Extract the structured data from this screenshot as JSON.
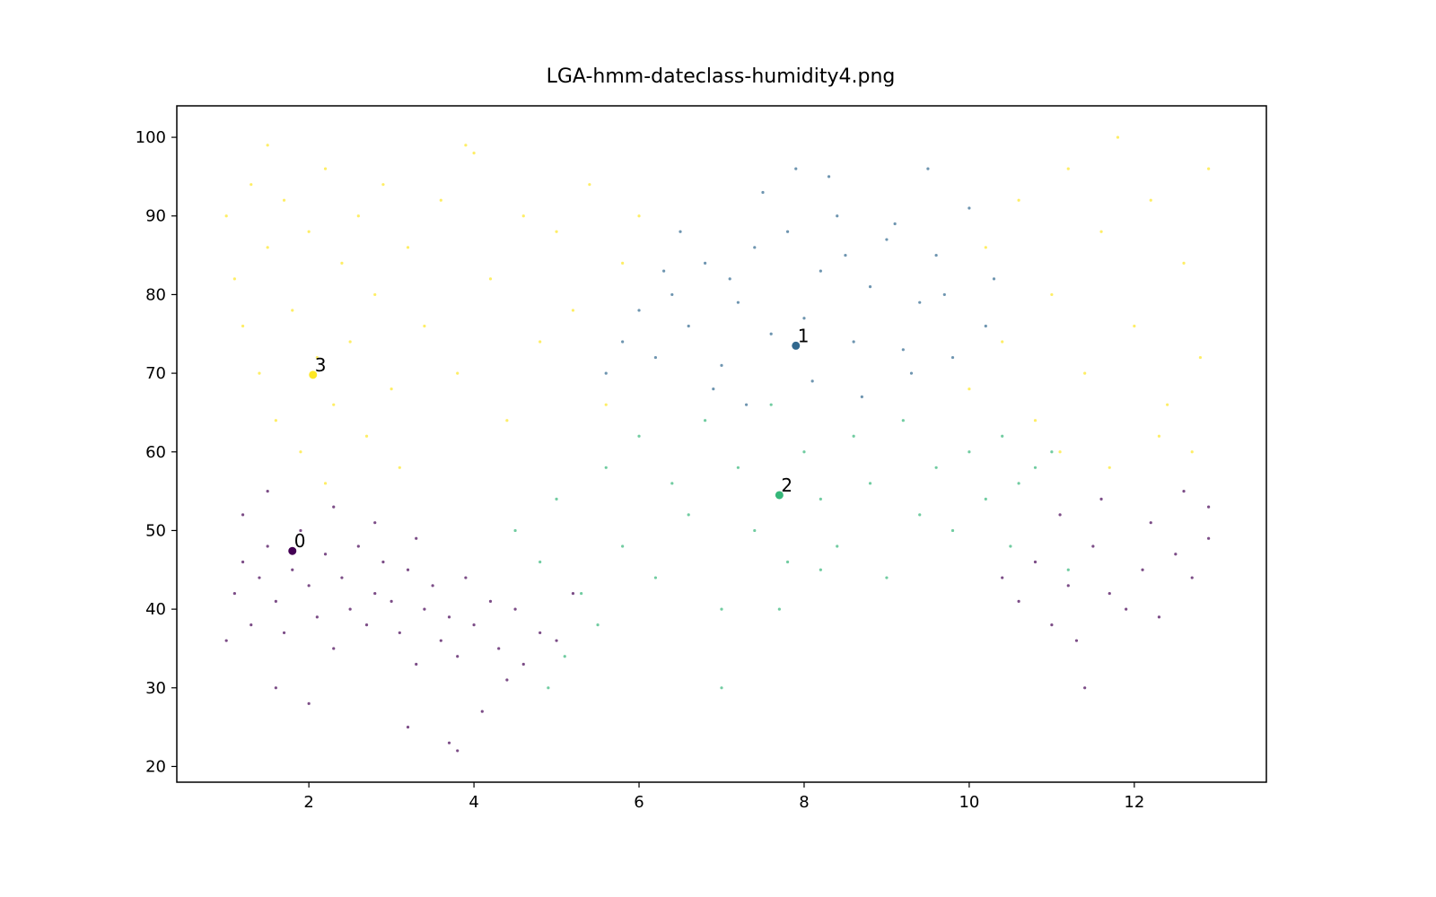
{
  "chart_data": {
    "type": "scatter",
    "title": "LGA-hmm-dateclass-humidity4.png",
    "xlabel": "",
    "ylabel": "",
    "xlim": [
      0.4,
      13.6
    ],
    "ylim": [
      18,
      104
    ],
    "x_ticks": [
      "2",
      "4",
      "6",
      "8",
      "10",
      "12"
    ],
    "y_ticks": [
      "20",
      "30",
      "40",
      "50",
      "60",
      "70",
      "80",
      "90",
      "100"
    ],
    "grid": false,
    "legend": "none",
    "colors": {
      "class_0": "#440154",
      "class_1": "#31688e",
      "class_2": "#35b779",
      "class_3": "#fde725"
    },
    "series": [
      {
        "label": "0",
        "center": {
          "x": 1.8,
          "y": 47.4
        },
        "points": [
          [
            1.0,
            36
          ],
          [
            1.1,
            42
          ],
          [
            1.2,
            46
          ],
          [
            1.3,
            38
          ],
          [
            1.4,
            44
          ],
          [
            1.5,
            48
          ],
          [
            1.6,
            41
          ],
          [
            1.7,
            37
          ],
          [
            1.8,
            45
          ],
          [
            1.9,
            50
          ],
          [
            2.0,
            43
          ],
          [
            2.1,
            39
          ],
          [
            2.2,
            47
          ],
          [
            2.3,
            35
          ],
          [
            2.4,
            44
          ],
          [
            2.5,
            40
          ],
          [
            2.6,
            48
          ],
          [
            2.7,
            38
          ],
          [
            2.8,
            42
          ],
          [
            2.9,
            46
          ],
          [
            3.0,
            41
          ],
          [
            3.1,
            37
          ],
          [
            3.2,
            45
          ],
          [
            3.3,
            33
          ],
          [
            3.4,
            40
          ],
          [
            3.5,
            43
          ],
          [
            3.6,
            36
          ],
          [
            3.7,
            39
          ],
          [
            3.8,
            34
          ],
          [
            3.9,
            44
          ],
          [
            4.0,
            38
          ],
          [
            4.1,
            27
          ],
          [
            4.2,
            41
          ],
          [
            4.3,
            35
          ],
          [
            4.4,
            31
          ],
          [
            4.5,
            40
          ],
          [
            4.6,
            33
          ],
          [
            4.8,
            37
          ],
          [
            5.0,
            36
          ],
          [
            5.2,
            42
          ],
          [
            1.2,
            52
          ],
          [
            1.5,
            55
          ],
          [
            2.3,
            53
          ],
          [
            2.8,
            51
          ],
          [
            3.3,
            49
          ],
          [
            1.6,
            30
          ],
          [
            2.0,
            28
          ],
          [
            3.2,
            25
          ],
          [
            3.7,
            23
          ],
          [
            3.8,
            22
          ],
          [
            10.4,
            44
          ],
          [
            10.6,
            41
          ],
          [
            10.8,
            46
          ],
          [
            11.0,
            38
          ],
          [
            11.2,
            43
          ],
          [
            11.3,
            36
          ],
          [
            11.5,
            48
          ],
          [
            11.7,
            42
          ],
          [
            11.9,
            40
          ],
          [
            12.1,
            45
          ],
          [
            12.3,
            39
          ],
          [
            12.5,
            47
          ],
          [
            12.7,
            44
          ],
          [
            12.9,
            49
          ],
          [
            11.1,
            52
          ],
          [
            11.6,
            54
          ],
          [
            12.2,
            51
          ],
          [
            12.6,
            55
          ],
          [
            12.9,
            53
          ],
          [
            11.4,
            30
          ]
        ]
      },
      {
        "label": "1",
        "center": {
          "x": 7.9,
          "y": 73.5
        },
        "points": [
          [
            5.6,
            70
          ],
          [
            5.8,
            74
          ],
          [
            6.0,
            78
          ],
          [
            6.2,
            72
          ],
          [
            6.4,
            80
          ],
          [
            6.6,
            76
          ],
          [
            6.8,
            84
          ],
          [
            7.0,
            71
          ],
          [
            7.2,
            79
          ],
          [
            7.4,
            86
          ],
          [
            7.6,
            75
          ],
          [
            7.8,
            88
          ],
          [
            8.0,
            77
          ],
          [
            8.2,
            83
          ],
          [
            8.4,
            90
          ],
          [
            8.6,
            74
          ],
          [
            8.8,
            81
          ],
          [
            9.0,
            87
          ],
          [
            9.2,
            73
          ],
          [
            9.4,
            79
          ],
          [
            9.6,
            85
          ],
          [
            9.8,
            72
          ],
          [
            10.0,
            91
          ],
          [
            10.2,
            76
          ],
          [
            7.5,
            93
          ],
          [
            8.3,
            95
          ],
          [
            9.5,
            96
          ],
          [
            9.1,
            89
          ],
          [
            6.5,
            88
          ],
          [
            7.9,
            96
          ],
          [
            6.9,
            68
          ],
          [
            7.3,
            66
          ],
          [
            8.1,
            69
          ],
          [
            8.7,
            67
          ],
          [
            9.3,
            70
          ],
          [
            7.1,
            82
          ],
          [
            8.5,
            85
          ],
          [
            9.7,
            80
          ],
          [
            6.3,
            83
          ],
          [
            10.3,
            82
          ]
        ]
      },
      {
        "label": "2",
        "center": {
          "x": 7.7,
          "y": 54.5
        },
        "points": [
          [
            4.5,
            50
          ],
          [
            4.8,
            46
          ],
          [
            5.0,
            54
          ],
          [
            5.3,
            42
          ],
          [
            5.6,
            58
          ],
          [
            5.8,
            48
          ],
          [
            6.0,
            62
          ],
          [
            6.2,
            44
          ],
          [
            6.4,
            56
          ],
          [
            6.6,
            52
          ],
          [
            6.8,
            64
          ],
          [
            7.0,
            40
          ],
          [
            7.2,
            58
          ],
          [
            7.4,
            50
          ],
          [
            7.6,
            66
          ],
          [
            7.8,
            46
          ],
          [
            8.0,
            60
          ],
          [
            8.2,
            54
          ],
          [
            8.4,
            48
          ],
          [
            8.6,
            62
          ],
          [
            8.8,
            56
          ],
          [
            9.0,
            44
          ],
          [
            9.2,
            64
          ],
          [
            9.4,
            52
          ],
          [
            9.6,
            58
          ],
          [
            9.8,
            50
          ],
          [
            10.0,
            60
          ],
          [
            10.2,
            54
          ],
          [
            10.4,
            62
          ],
          [
            10.6,
            56
          ],
          [
            10.8,
            58
          ],
          [
            11.0,
            60
          ],
          [
            5.1,
            34
          ],
          [
            4.9,
            30
          ],
          [
            5.5,
            38
          ],
          [
            7.0,
            30
          ],
          [
            7.7,
            40
          ],
          [
            8.2,
            45
          ],
          [
            10.5,
            48
          ],
          [
            11.2,
            45
          ]
        ]
      },
      {
        "label": "3",
        "center": {
          "x": 2.05,
          "y": 69.8
        },
        "points": [
          [
            1.0,
            90
          ],
          [
            1.1,
            82
          ],
          [
            1.2,
            76
          ],
          [
            1.3,
            94
          ],
          [
            1.4,
            70
          ],
          [
            1.5,
            86
          ],
          [
            1.6,
            64
          ],
          [
            1.7,
            92
          ],
          [
            1.8,
            78
          ],
          [
            1.9,
            60
          ],
          [
            2.0,
            88
          ],
          [
            2.1,
            72
          ],
          [
            2.2,
            96
          ],
          [
            2.3,
            66
          ],
          [
            2.4,
            84
          ],
          [
            2.5,
            74
          ],
          [
            2.6,
            90
          ],
          [
            2.7,
            62
          ],
          [
            2.8,
            80
          ],
          [
            2.9,
            94
          ],
          [
            3.0,
            68
          ],
          [
            3.2,
            86
          ],
          [
            3.4,
            76
          ],
          [
            3.6,
            92
          ],
          [
            3.8,
            70
          ],
          [
            4.0,
            98
          ],
          [
            4.2,
            82
          ],
          [
            4.4,
            64
          ],
          [
            4.6,
            90
          ],
          [
            4.8,
            74
          ],
          [
            5.0,
            88
          ],
          [
            5.2,
            78
          ],
          [
            5.4,
            94
          ],
          [
            5.6,
            66
          ],
          [
            5.8,
            84
          ],
          [
            6.0,
            90
          ],
          [
            1.5,
            99
          ],
          [
            3.9,
            99
          ],
          [
            2.2,
            56
          ],
          [
            3.1,
            58
          ],
          [
            10.0,
            68
          ],
          [
            10.2,
            86
          ],
          [
            10.4,
            74
          ],
          [
            10.6,
            92
          ],
          [
            10.8,
            64
          ],
          [
            11.0,
            80
          ],
          [
            11.2,
            96
          ],
          [
            11.4,
            70
          ],
          [
            11.6,
            88
          ],
          [
            11.8,
            100
          ],
          [
            12.0,
            76
          ],
          [
            12.2,
            92
          ],
          [
            12.4,
            66
          ],
          [
            12.6,
            84
          ],
          [
            12.8,
            72
          ],
          [
            12.9,
            96
          ],
          [
            11.1,
            60
          ],
          [
            11.7,
            58
          ],
          [
            12.3,
            62
          ],
          [
            12.7,
            60
          ]
        ]
      }
    ]
  }
}
